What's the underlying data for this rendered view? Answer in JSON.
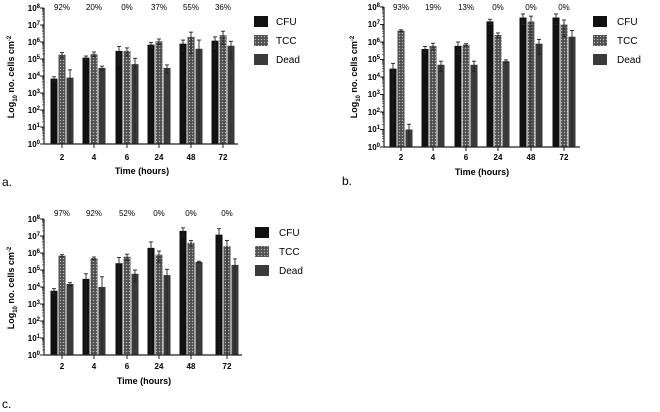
{
  "colors": {
    "cfu": "#111111",
    "tcc": "#5c5c5c",
    "dead": "#3a3a3a",
    "axis": "#222222"
  },
  "chart_data": [
    {
      "type": "bar",
      "panel_label": "a.",
      "categories": [
        "2",
        "4",
        "6",
        "24",
        "48",
        "72"
      ],
      "percent_labels": [
        "92%",
        "20%",
        "0%",
        "37%",
        "55%",
        "36%"
      ],
      "xlabel": "Time (hours)",
      "ylabel": "Log10 no. cells cm-2",
      "ylabel_parts": {
        "base": "Log",
        "sub": "10",
        "rest": " no. cells cm",
        "sup": "-2"
      },
      "yscale": "log",
      "ylim": [
        1,
        100000000
      ],
      "ytick_labels": [
        {
          "base": "10",
          "exp": "0"
        },
        {
          "base": "10",
          "exp": "1"
        },
        {
          "base": "10",
          "exp": "2"
        },
        {
          "base": "10",
          "exp": "3"
        },
        {
          "base": "10",
          "exp": "4"
        },
        {
          "base": "10",
          "exp": "5"
        },
        {
          "base": "10",
          "exp": "6"
        },
        {
          "base": "10",
          "exp": "7"
        },
        {
          "base": "10",
          "exp": "8"
        }
      ],
      "legend": [
        "CFU",
        "TCC",
        "Dead"
      ],
      "legend_position": "right",
      "series": [
        {
          "name": "CFU",
          "values": [
            7000,
            120000,
            300000,
            700000,
            800000,
            1200000
          ],
          "errors": [
            2000,
            30000,
            250000,
            250000,
            500000,
            800000
          ]
        },
        {
          "name": "TCC",
          "values": [
            180000,
            200000,
            300000,
            1100000,
            2000000,
            2500000
          ],
          "errors": [
            60000,
            60000,
            150000,
            400000,
            1800000,
            1800000
          ]
        },
        {
          "name": "Dead",
          "values": [
            8000,
            30000,
            50000,
            30000,
            400000,
            600000
          ],
          "errors": [
            15000,
            8000,
            60000,
            15000,
            900000,
            500000
          ]
        }
      ]
    },
    {
      "type": "bar",
      "panel_label": "b.",
      "categories": [
        "2",
        "4",
        "6",
        "24",
        "48",
        "72"
      ],
      "percent_labels": [
        "93%",
        "19%",
        "13%",
        "0%",
        "0%",
        "0%"
      ],
      "xlabel": "Time (hours)",
      "ylabel": "Log10 no. cells cm-2",
      "ylabel_parts": {
        "base": "Log",
        "sub": "10",
        "rest": " no. cells cm",
        "sup": "-2"
      },
      "yscale": "log",
      "ylim": [
        1,
        100000000
      ],
      "ytick_labels": [
        {
          "base": "10",
          "exp": "0"
        },
        {
          "base": "10",
          "exp": "1"
        },
        {
          "base": "10",
          "exp": "2"
        },
        {
          "base": "10",
          "exp": "3"
        },
        {
          "base": "10",
          "exp": "4"
        },
        {
          "base": "10",
          "exp": "5"
        },
        {
          "base": "10",
          "exp": "6"
        },
        {
          "base": "10",
          "exp": "7"
        },
        {
          "base": "10",
          "exp": "8"
        }
      ],
      "legend": [
        "CFU",
        "TCC",
        "Dead"
      ],
      "legend_position": "right",
      "series": [
        {
          "name": "CFU",
          "values": [
            30000,
            400000,
            600000,
            15000000,
            25000000,
            25000000
          ],
          "errors": [
            30000,
            150000,
            400000,
            5000000,
            15000000,
            15000000
          ]
        },
        {
          "name": "TCC",
          "values": [
            4500000,
            600000,
            700000,
            2500000,
            15000000,
            10000000
          ],
          "errors": [
            500000,
            250000,
            100000,
            800000,
            15000000,
            8000000
          ]
        },
        {
          "name": "Dead",
          "values": [
            10,
            50000,
            50000,
            80000,
            800000,
            2000000
          ],
          "errors": [
            10,
            30000,
            30000,
            15000,
            600000,
            2500000
          ]
        }
      ]
    },
    {
      "type": "bar",
      "panel_label": "c.",
      "categories": [
        "2",
        "4",
        "6",
        "24",
        "48",
        "72"
      ],
      "percent_labels": [
        "97%",
        "92%",
        "52%",
        "0%",
        "0%",
        "0%"
      ],
      "xlabel": "Time (hours)",
      "ylabel": "Log10 no. cells cm-2",
      "ylabel_parts": {
        "base": "Log",
        "sub": "10",
        "rest": " no. cells cm",
        "sup": "-2"
      },
      "yscale": "log",
      "ylim": [
        1,
        100000000
      ],
      "ytick_labels": [
        {
          "base": "10",
          "exp": "0"
        },
        {
          "base": "10",
          "exp": "1"
        },
        {
          "base": "10",
          "exp": "2"
        },
        {
          "base": "10",
          "exp": "3"
        },
        {
          "base": "10",
          "exp": "4"
        },
        {
          "base": "10",
          "exp": "5"
        },
        {
          "base": "10",
          "exp": "6"
        },
        {
          "base": "10",
          "exp": "7"
        },
        {
          "base": "10",
          "exp": "8"
        }
      ],
      "legend": [
        "CFU",
        "TCC",
        "Dead"
      ],
      "legend_position": "right",
      "series": [
        {
          "name": "CFU",
          "values": [
            6000,
            30000,
            250000,
            2000000,
            20000000,
            12000000
          ],
          "errors": [
            2000,
            30000,
            300000,
            2500000,
            10000000,
            15000000
          ]
        },
        {
          "name": "TCC",
          "values": [
            700000,
            500000,
            600000,
            800000,
            4000000,
            2500000
          ],
          "errors": [
            100000,
            80000,
            250000,
            500000,
            1500000,
            3000000
          ]
        },
        {
          "name": "Dead",
          "values": [
            15000,
            10000,
            60000,
            50000,
            300000,
            200000
          ],
          "errors": [
            3000,
            30000,
            40000,
            60000,
            30000,
            250000
          ]
        }
      ]
    }
  ]
}
